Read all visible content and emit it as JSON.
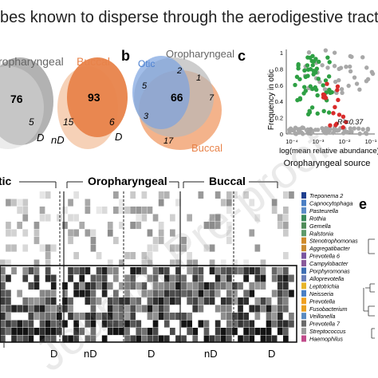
{
  "header": {
    "text": "bes known to disperse through the aerodigestive tract as well ["
  },
  "panel_a": {
    "label_oro": "ropharyngeal",
    "label_buccal": "Buccal",
    "oro_count": "76",
    "oro_right": "5",
    "oro_d": "D",
    "buccal_count": "93",
    "buccal_left": "15",
    "buccal_right": "6",
    "buccal_nd": "nD",
    "buccal_d": "D"
  },
  "panel_b": {
    "letter": "b",
    "otic": "Otic",
    "oro": "Oropharyngeal",
    "buccal": "Buccal",
    "n_top": "2",
    "n_topright": "1",
    "n_left": "5",
    "n_center": "66",
    "n_right": "7",
    "n_lowleft": "3",
    "n_bottom": "17"
  },
  "panel_c": {
    "letter": "c",
    "ylabel": "Frequency in otic",
    "xlabel": "log(mean relative abundance)",
    "source": "Oropharyngeal source",
    "r2": "R²=0.37",
    "yticks": [
      "0",
      "0.2",
      "0.4",
      "0.6",
      "0.8",
      "1"
    ],
    "xticks": [
      "10⁻⁴",
      "10⁻³",
      "10⁻²",
      "10⁻¹"
    ]
  },
  "heatmap": {
    "groups": [
      "tic",
      "Oropharyngeal",
      "Buccal"
    ],
    "bottom_labels": [
      "D",
      "nD",
      "D",
      "nD",
      "D"
    ],
    "panel_e": "e",
    "taxa": [
      {
        "name": "Treponema 2",
        "color": "#1f3f8f"
      },
      {
        "name": "Capnocytophaga",
        "color": "#4a7fc4"
      },
      {
        "name": "Pasteurella",
        "color": "#5c8cc7"
      },
      {
        "name": "Rothia",
        "color": "#3a8a5a"
      },
      {
        "name": "Gemella",
        "color": "#4f8c59"
      },
      {
        "name": "Ralstonia",
        "color": "#5e9a6a"
      },
      {
        "name": "Stenotrophomonas",
        "color": "#d08a2a"
      },
      {
        "name": "Aggregatibacter",
        "color": "#c98b31"
      },
      {
        "name": "Prevotella 6",
        "color": "#7a55a0"
      },
      {
        "name": "Campylobacter",
        "color": "#8a5a9a"
      },
      {
        "name": "Porphyromonas",
        "color": "#3f6fb3"
      },
      {
        "name": "Alloprevotella",
        "color": "#6b7fb8"
      },
      {
        "name": "Leptotrichia",
        "color": "#e8b52a"
      },
      {
        "name": "Neisseria",
        "color": "#4a7fc4"
      },
      {
        "name": "Prevotella",
        "color": "#f0a020"
      },
      {
        "name": "Fusobacterium",
        "color": "#e8a020"
      },
      {
        "name": "Veillonella",
        "color": "#5a8ac0"
      },
      {
        "name": "Prevotella 7",
        "color": "#6a6a6a"
      },
      {
        "name": "Streptococcus",
        "color": "#9a9a9a"
      },
      {
        "name": "Haemophilus",
        "color": "#c04a8a"
      }
    ]
  },
  "watermark": "Journal Pre-proof",
  "colors": {
    "oro_grey": "#9a9a9a",
    "buccal_orange": "#e8834a",
    "otic_blue": "#6f96d6",
    "green": "#2ea044",
    "red": "#d92b2b",
    "grey_dot": "#a8a8a8"
  }
}
